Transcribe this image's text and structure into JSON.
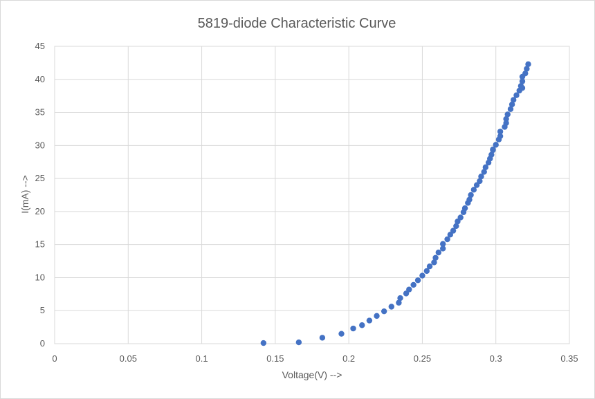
{
  "chart_data": {
    "type": "scatter",
    "title": "5819-diode Characteristic Curve",
    "xlabel": "Voltage(V) -->",
    "ylabel": "I(mA) -->",
    "xlim": [
      0,
      0.35
    ],
    "ylim": [
      0,
      45
    ],
    "x_ticks": [
      "0",
      "0.05",
      "0.1",
      "0.15",
      "0.2",
      "0.25",
      "0.3",
      "0.35"
    ],
    "y_ticks": [
      "0",
      "5",
      "10",
      "15",
      "20",
      "25",
      "30",
      "35",
      "40",
      "45"
    ],
    "grid": true,
    "legend": "none",
    "marker_color": "#4472c4",
    "series": [
      {
        "x": [
          0.142,
          0.166,
          0.182,
          0.195,
          0.203,
          0.209,
          0.214,
          0.219,
          0.224,
          0.229,
          0.234,
          0.235,
          0.239,
          0.241,
          0.244,
          0.247,
          0.25,
          0.253,
          0.255,
          0.258,
          0.259,
          0.261,
          0.264,
          0.264,
          0.267,
          0.269,
          0.271,
          0.273,
          0.274,
          0.276,
          0.278,
          0.279,
          0.281,
          0.282,
          0.283,
          0.285,
          0.287,
          0.289,
          0.29,
          0.292,
          0.293,
          0.295,
          0.296,
          0.297,
          0.298,
          0.298,
          0.3,
          0.302,
          0.303,
          0.303,
          0.306,
          0.307,
          0.307,
          0.308,
          0.31,
          0.311,
          0.312,
          0.314,
          0.316,
          0.317,
          0.318,
          0.318,
          0.318,
          0.32,
          0.321,
          0.322
        ],
        "y": [
          0.1,
          0.2,
          0.9,
          1.5,
          2.3,
          2.8,
          3.5,
          4.2,
          4.9,
          5.6,
          6.2,
          6.9,
          7.6,
          8.2,
          8.9,
          9.6,
          10.3,
          11.0,
          11.7,
          12.3,
          13.0,
          13.8,
          14.4,
          15.1,
          15.8,
          16.5,
          17.1,
          17.8,
          18.5,
          19.1,
          19.9,
          20.5,
          21.3,
          21.8,
          22.5,
          23.3,
          24.0,
          24.6,
          25.3,
          26.0,
          26.7,
          27.4,
          28.0,
          28.6,
          29.4,
          29.3,
          30.1,
          30.9,
          31.4,
          32.1,
          32.8,
          33.4,
          34.0,
          34.7,
          35.5,
          36.2,
          36.9,
          37.6,
          38.3,
          39.0,
          39.7,
          40.4,
          38.7,
          40.9,
          41.6,
          42.3
        ]
      }
    ]
  }
}
